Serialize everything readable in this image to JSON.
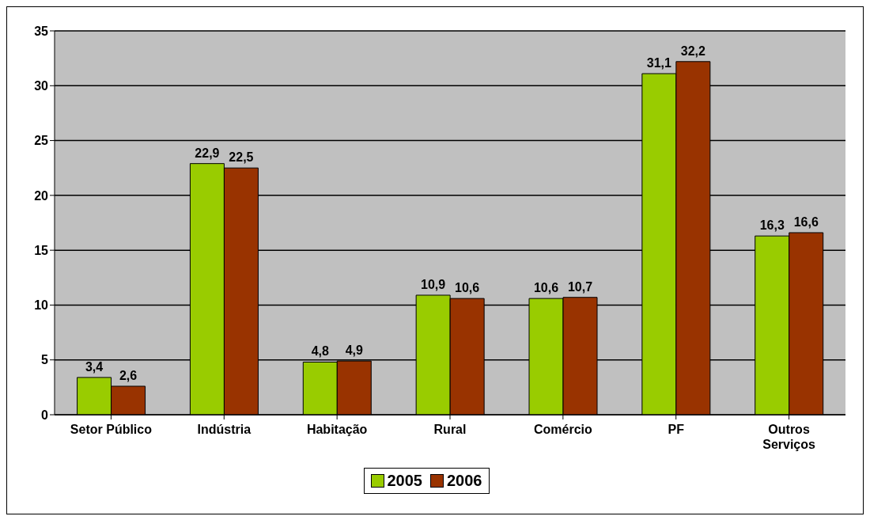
{
  "chart_data": {
    "type": "bar",
    "categories": [
      "Setor Público",
      "Indústria",
      "Habitação",
      "Rural",
      "Comércio",
      "PF",
      "Outros Serviços"
    ],
    "series": [
      {
        "name": "2005",
        "color": "#99cc00",
        "values": [
          3.4,
          22.9,
          4.8,
          10.9,
          10.6,
          31.1,
          16.3
        ],
        "value_labels": [
          "3,4",
          "22,9",
          "4,8",
          "10,9",
          "10,6",
          "31,1",
          "16,3"
        ]
      },
      {
        "name": "2006",
        "color": "#993300",
        "values": [
          2.6,
          22.5,
          4.9,
          10.6,
          10.7,
          32.2,
          16.6
        ],
        "value_labels": [
          "2,6",
          "22,5",
          "4,9",
          "10,6",
          "10,7",
          "32,2",
          "16,6"
        ]
      }
    ],
    "ylim": [
      0,
      35
    ],
    "yticks": [
      0,
      5,
      10,
      15,
      20,
      25,
      30,
      35
    ],
    "grid": "y",
    "legend": "bottom"
  }
}
